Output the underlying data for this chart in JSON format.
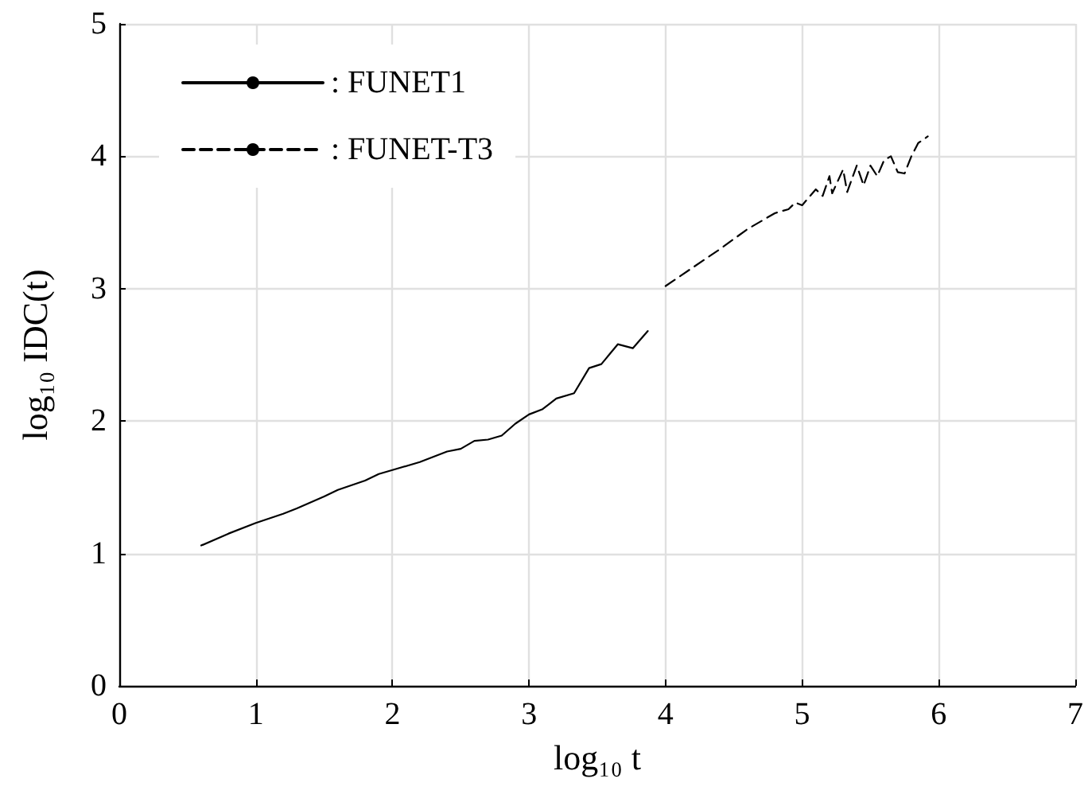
{
  "chart_data": {
    "type": "line",
    "xlabel": "log₁₀ t",
    "ylabel": "log₁₀ IDC(t)",
    "xlim": [
      0,
      7
    ],
    "xticks": [
      0,
      1,
      2,
      3,
      4,
      5,
      6,
      7
    ],
    "ylim": [
      0,
      5
    ],
    "yticks": [
      0,
      1,
      2,
      3,
      4,
      5
    ],
    "grid": true,
    "legend": "top left",
    "marker": "none",
    "series": [
      {
        "name": ": FUNET1",
        "color": "#000000",
        "line_style": "solid",
        "x": [
          0.6,
          0.8,
          1.0,
          1.2,
          1.3,
          1.5,
          1.6,
          1.8,
          1.9,
          2.0,
          2.2,
          2.4,
          2.5,
          2.6,
          2.7,
          2.8,
          2.9,
          3.0,
          3.1,
          3.2,
          3.33,
          3.44,
          3.53,
          3.65,
          3.76,
          3.87
        ],
        "values": [
          1.06,
          1.15,
          1.23,
          1.3,
          1.34,
          1.43,
          1.48,
          1.55,
          1.6,
          1.63,
          1.69,
          1.77,
          1.79,
          1.85,
          1.86,
          1.89,
          1.98,
          2.05,
          2.09,
          2.17,
          2.21,
          2.4,
          2.43,
          2.58,
          2.55,
          2.68
        ]
      },
      {
        "name": ": FUNET-T3",
        "color": "#000000",
        "line_style": "dashed",
        "x": [
          4.0,
          4.2,
          4.4,
          4.6,
          4.8,
          4.9,
          4.95,
          5.0,
          5.1,
          5.15,
          5.2,
          5.22,
          5.3,
          5.33,
          5.4,
          5.45,
          5.5,
          5.55,
          5.6,
          5.65,
          5.7,
          5.75,
          5.8,
          5.85,
          5.92
        ],
        "values": [
          3.02,
          3.16,
          3.3,
          3.45,
          3.57,
          3.6,
          3.65,
          3.63,
          3.75,
          3.7,
          3.85,
          3.72,
          3.9,
          3.73,
          3.93,
          3.78,
          3.93,
          3.85,
          3.97,
          4.0,
          3.88,
          3.87,
          4.0,
          4.1,
          4.15
        ]
      }
    ]
  }
}
